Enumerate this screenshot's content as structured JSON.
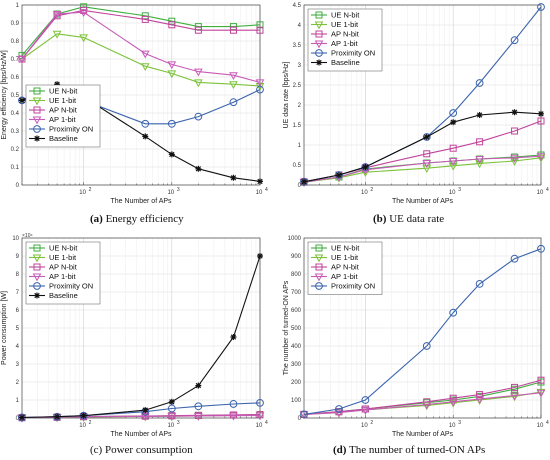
{
  "captions": [
    {
      "letter": "(a)",
      "text": "Energy efficiency"
    },
    {
      "letter": "(b)",
      "text": "UE data rate"
    },
    {
      "letter": "(c)",
      "text": "Power consumption"
    },
    {
      "letter": "(d)",
      "text": "The number of turned-ON APs"
    }
  ],
  "chart_data": [
    {
      "type": "line",
      "title": "",
      "xlabel": "The Number of APs",
      "ylabel": "Energy efficiency [bps/Hz/W]",
      "xscale": "log",
      "xlim": [
        20,
        10000
      ],
      "ylim": [
        0,
        1
      ],
      "yticks": [
        "0",
        "0.1",
        "0.2",
        "0.3",
        "0.4",
        "0.5",
        "0.6",
        "0.7",
        "0.8",
        "0.9",
        "1"
      ],
      "yexponent": "",
      "grid": true,
      "legend": "bottom-left",
      "x": [
        20,
        50,
        100,
        500,
        1000,
        2000,
        5000,
        10000
      ],
      "series": [
        {
          "name": "UE N-bit",
          "color": "#3fae3f",
          "marker": "square",
          "values": [
            0.72,
            0.95,
            0.99,
            0.94,
            0.91,
            0.88,
            0.88,
            0.89
          ]
        },
        {
          "name": "UE 1-bit",
          "color": "#7cc23a",
          "marker": "tri-down",
          "values": [
            0.7,
            0.84,
            0.82,
            0.66,
            0.62,
            0.57,
            0.56,
            0.55
          ]
        },
        {
          "name": "AP N-bit",
          "color": "#c0439c",
          "marker": "square",
          "values": [
            0.7,
            0.94,
            0.97,
            0.92,
            0.89,
            0.86,
            0.86,
            0.86
          ]
        },
        {
          "name": "AP 1-bit",
          "color": "#c85ab8",
          "marker": "tri-down",
          "values": [
            0.7,
            0.95,
            0.96,
            0.73,
            0.67,
            0.63,
            0.61,
            0.57
          ]
        },
        {
          "name": "Proximity ON",
          "color": "#3a64ad",
          "marker": "circle",
          "values": [
            0.47,
            0.54,
            0.47,
            0.34,
            0.34,
            0.38,
            0.46,
            0.53
          ]
        },
        {
          "name": "Baseline",
          "color": "#111111",
          "marker": "star",
          "values": [
            0.47,
            0.56,
            0.49,
            0.27,
            0.17,
            0.09,
            0.04,
            0.02
          ]
        }
      ]
    },
    {
      "type": "line",
      "title": "",
      "xlabel": "The Number of APs",
      "ylabel": "UE data rate [bps/Hz]",
      "xscale": "log",
      "xlim": [
        20,
        10000
      ],
      "ylim": [
        0,
        4.5
      ],
      "yticks": [
        "0",
        "0.5",
        "1",
        "1.5",
        "2",
        "2.5",
        "3",
        "3.5",
        "4",
        "4.5"
      ],
      "yexponent": "",
      "grid": true,
      "legend": "top-left",
      "x": [
        20,
        50,
        100,
        500,
        1000,
        2000,
        5000,
        10000
      ],
      "series": [
        {
          "name": "UE N-bit",
          "color": "#3fae3f",
          "marker": "square",
          "values": [
            0.07,
            0.2,
            0.4,
            0.55,
            0.6,
            0.65,
            0.7,
            0.75
          ]
        },
        {
          "name": "UE 1-bit",
          "color": "#7cc23a",
          "marker": "tri-down",
          "values": [
            0.07,
            0.18,
            0.32,
            0.42,
            0.48,
            0.54,
            0.6,
            0.68
          ]
        },
        {
          "name": "AP N-bit",
          "color": "#c0439c",
          "marker": "square",
          "values": [
            0.08,
            0.25,
            0.43,
            0.78,
            0.92,
            1.08,
            1.35,
            1.6
          ]
        },
        {
          "name": "AP 1-bit",
          "color": "#c85ab8",
          "marker": "tri-down",
          "values": [
            0.07,
            0.2,
            0.38,
            0.55,
            0.6,
            0.65,
            0.68,
            0.72
          ]
        },
        {
          "name": "Proximity ON",
          "color": "#3a64ad",
          "marker": "circle",
          "values": [
            0.08,
            0.25,
            0.45,
            1.2,
            1.8,
            2.55,
            3.62,
            4.45
          ]
        },
        {
          "name": "Baseline",
          "color": "#111111",
          "marker": "star",
          "values": [
            0.08,
            0.25,
            0.45,
            1.2,
            1.57,
            1.75,
            1.82,
            1.78
          ]
        }
      ]
    },
    {
      "type": "line",
      "title": "",
      "xlabel": "The Number of APs",
      "ylabel": "Power consumption [W]",
      "xscale": "log",
      "xlim": [
        20,
        10000
      ],
      "ylim": [
        0,
        100000
      ],
      "yticks": [
        "0",
        "1",
        "2",
        "3",
        "4",
        "5",
        "6",
        "7",
        "8",
        "9",
        "10"
      ],
      "yexponent": "×10⁴",
      "grid": true,
      "legend": "top-left",
      "x": [
        20,
        50,
        100,
        500,
        1000,
        2000,
        5000,
        10000
      ],
      "series": [
        {
          "name": "UE N-bit",
          "color": "#3fae3f",
          "marker": "square",
          "values": [
            200,
            400,
            700,
            1000,
            1200,
            1400,
            1600,
            1800
          ]
        },
        {
          "name": "UE 1-bit",
          "color": "#7cc23a",
          "marker": "tri-down",
          "values": [
            200,
            400,
            600,
            900,
            1000,
            1200,
            1400,
            1500
          ]
        },
        {
          "name": "AP N-bit",
          "color": "#c0439c",
          "marker": "square",
          "values": [
            200,
            450,
            800,
            1100,
            1300,
            1500,
            1700,
            1900
          ]
        },
        {
          "name": "AP 1-bit",
          "color": "#c85ab8",
          "marker": "tri-down",
          "values": [
            200,
            400,
            700,
            900,
            1000,
            1100,
            1300,
            1400
          ]
        },
        {
          "name": "Proximity ON",
          "color": "#3a64ad",
          "marker": "circle",
          "values": [
            300,
            700,
            1300,
            3500,
            5300,
            6500,
            7800,
            8400
          ]
        },
        {
          "name": "Baseline",
          "color": "#111111",
          "marker": "star",
          "values": [
            300,
            700,
            1300,
            4400,
            9000,
            18000,
            45000,
            90000
          ]
        }
      ]
    },
    {
      "type": "line",
      "title": "",
      "xlabel": "The Number of APs",
      "ylabel": "The number of turned-ON APs",
      "xscale": "log",
      "xlim": [
        20,
        10000
      ],
      "ylim": [
        0,
        1000
      ],
      "yticks": [
        "0",
        "100",
        "200",
        "300",
        "400",
        "500",
        "600",
        "700",
        "800",
        "900",
        "1000"
      ],
      "yexponent": "",
      "grid": true,
      "legend": "top-left",
      "x": [
        20,
        50,
        100,
        500,
        1000,
        2000,
        5000,
        10000
      ],
      "series": [
        {
          "name": "UE N-bit",
          "color": "#3fae3f",
          "marker": "square",
          "values": [
            20,
            35,
            50,
            85,
            100,
            120,
            160,
            200
          ]
        },
        {
          "name": "UE 1-bit",
          "color": "#7cc23a",
          "marker": "tri-down",
          "values": [
            20,
            30,
            45,
            70,
            85,
            100,
            120,
            145
          ]
        },
        {
          "name": "AP N-bit",
          "color": "#c0439c",
          "marker": "square",
          "values": [
            20,
            35,
            50,
            90,
            110,
            130,
            170,
            210
          ]
        },
        {
          "name": "AP 1-bit",
          "color": "#c85ab8",
          "marker": "tri-down",
          "values": [
            20,
            30,
            45,
            75,
            90,
            105,
            125,
            140
          ]
        },
        {
          "name": "Proximity ON",
          "color": "#3a64ad",
          "marker": "circle",
          "values": [
            20,
            50,
            100,
            400,
            585,
            745,
            885,
            940
          ]
        }
      ]
    }
  ]
}
